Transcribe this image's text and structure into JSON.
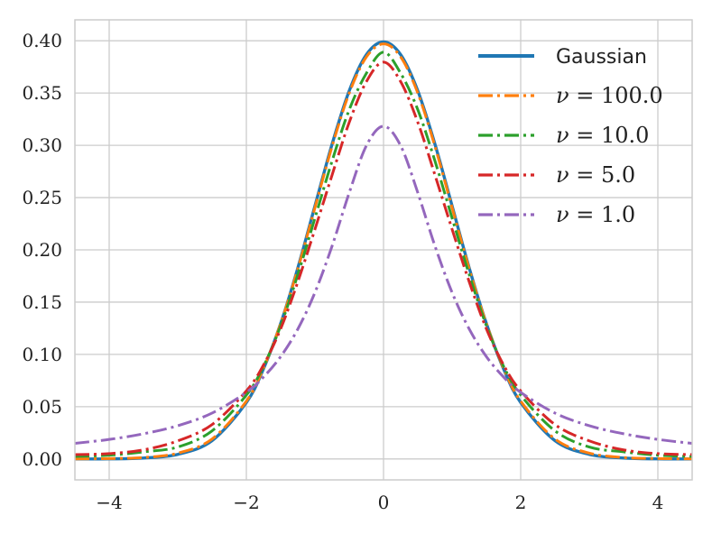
{
  "chart_data": {
    "type": "line",
    "title": "",
    "xlabel": "",
    "ylabel": "",
    "xlim": [
      -4.5,
      4.5
    ],
    "ylim": [
      -0.02,
      0.42
    ],
    "grid": true,
    "legend_position": "top-right",
    "x_ticks": [
      {
        "value": -4,
        "label": "−4"
      },
      {
        "value": -2,
        "label": "−2"
      },
      {
        "value": 0,
        "label": "0"
      },
      {
        "value": 2,
        "label": "2"
      },
      {
        "value": 4,
        "label": "4"
      }
    ],
    "y_ticks": [
      {
        "value": 0.0,
        "label": "0.00"
      },
      {
        "value": 0.05,
        "label": "0.05"
      },
      {
        "value": 0.1,
        "label": "0.10"
      },
      {
        "value": 0.15,
        "label": "0.15"
      },
      {
        "value": 0.2,
        "label": "0.20"
      },
      {
        "value": 0.25,
        "label": "0.25"
      },
      {
        "value": 0.3,
        "label": "0.30"
      },
      {
        "value": 0.35,
        "label": "0.35"
      },
      {
        "value": 0.4,
        "label": "0.40"
      }
    ],
    "series": [
      {
        "name": "Gaussian",
        "label_prefix": "",
        "color": "#1f77b4",
        "style": "solid",
        "x": [
          -4.5,
          -4.0,
          -3.5,
          -3.0,
          -2.5,
          -2.0,
          -1.75,
          -1.5,
          -1.25,
          -1.0,
          -0.75,
          -0.5,
          -0.25,
          0.0,
          0.25,
          0.5,
          0.75,
          1.0,
          1.25,
          1.5,
          1.75,
          2.0,
          2.5,
          3.0,
          3.5,
          4.0,
          4.5
        ],
        "y": [
          0.0,
          0.0001,
          0.0009,
          0.0044,
          0.0175,
          0.054,
          0.0863,
          0.1295,
          0.1826,
          0.242,
          0.3011,
          0.3521,
          0.3867,
          0.3989,
          0.3867,
          0.3521,
          0.3011,
          0.242,
          0.1826,
          0.1295,
          0.0863,
          0.054,
          0.0175,
          0.0044,
          0.0009,
          0.0001,
          0.0
        ]
      },
      {
        "name": "100.0",
        "label_prefix": "ν = ",
        "color": "#ff7f0e",
        "style": "dashdot",
        "x": [
          -4.5,
          -4.0,
          -3.5,
          -3.0,
          -2.5,
          -2.0,
          -1.75,
          -1.5,
          -1.25,
          -1.0,
          -0.75,
          -0.5,
          -0.25,
          0.0,
          0.25,
          0.5,
          0.75,
          1.0,
          1.25,
          1.5,
          1.75,
          2.0,
          2.5,
          3.0,
          3.5,
          4.0,
          4.5
        ],
        "y": [
          0.0001,
          0.0004,
          0.0014,
          0.0056,
          0.0191,
          0.0553,
          0.087,
          0.1294,
          0.1816,
          0.2403,
          0.299,
          0.3499,
          0.3845,
          0.397,
          0.3845,
          0.3499,
          0.299,
          0.2403,
          0.1816,
          0.1294,
          0.087,
          0.0553,
          0.0191,
          0.0056,
          0.0014,
          0.0004,
          0.0001
        ]
      },
      {
        "name": "10.0",
        "label_prefix": "ν = ",
        "color": "#2ca02c",
        "style": "dashdot",
        "x": [
          -4.5,
          -4.0,
          -3.5,
          -3.0,
          -2.5,
          -2.0,
          -1.75,
          -1.5,
          -1.25,
          -1.0,
          -0.75,
          -0.5,
          -0.25,
          0.0,
          0.25,
          0.5,
          0.75,
          1.0,
          1.25,
          1.5,
          1.75,
          2.0,
          2.5,
          3.0,
          3.5,
          4.0,
          4.5
        ],
        "y": [
          0.0024,
          0.0036,
          0.0068,
          0.0114,
          0.0269,
          0.0611,
          0.0887,
          0.1274,
          0.1763,
          0.2304,
          0.285,
          0.334,
          0.3689,
          0.3891,
          0.3689,
          0.334,
          0.285,
          0.2304,
          0.1763,
          0.1274,
          0.0887,
          0.0611,
          0.0269,
          0.0114,
          0.0068,
          0.0036,
          0.0024
        ]
      },
      {
        "name": "5.0",
        "label_prefix": "ν = ",
        "color": "#d62728",
        "style": "dashdot",
        "x": [
          -4.5,
          -4.0,
          -3.5,
          -3.0,
          -2.5,
          -2.0,
          -1.75,
          -1.5,
          -1.25,
          -1.0,
          -0.75,
          -0.5,
          -0.25,
          0.0,
          0.25,
          0.5,
          0.75,
          1.0,
          1.25,
          1.5,
          1.75,
          2.0,
          2.5,
          3.0,
          3.5,
          4.0,
          4.5
        ],
        "y": [
          0.0042,
          0.0051,
          0.0087,
          0.0173,
          0.0329,
          0.0651,
          0.0899,
          0.1245,
          0.1694,
          0.2197,
          0.2716,
          0.322,
          0.3609,
          0.3796,
          0.3609,
          0.322,
          0.2716,
          0.2197,
          0.1694,
          0.1245,
          0.0899,
          0.0651,
          0.0329,
          0.0173,
          0.0087,
          0.0051,
          0.0042
        ]
      },
      {
        "name": "1.0",
        "label_prefix": "ν = ",
        "color": "#9467bd",
        "style": "dashdot",
        "x": [
          -4.5,
          -4.0,
          -3.5,
          -3.0,
          -2.5,
          -2.0,
          -1.75,
          -1.5,
          -1.25,
          -1.0,
          -0.75,
          -0.5,
          -0.25,
          0.0,
          0.25,
          0.5,
          0.75,
          1.0,
          1.25,
          1.5,
          1.75,
          2.0,
          2.5,
          3.0,
          3.5,
          4.0,
          4.5
        ],
        "y": [
          0.0149,
          0.0187,
          0.0241,
          0.0318,
          0.0439,
          0.0637,
          0.0784,
          0.0979,
          0.1242,
          0.1592,
          0.2037,
          0.2546,
          0.2996,
          0.3183,
          0.2996,
          0.2546,
          0.2037,
          0.1592,
          0.1242,
          0.0979,
          0.0784,
          0.0637,
          0.0439,
          0.0318,
          0.0241,
          0.0187,
          0.0149
        ]
      }
    ]
  }
}
